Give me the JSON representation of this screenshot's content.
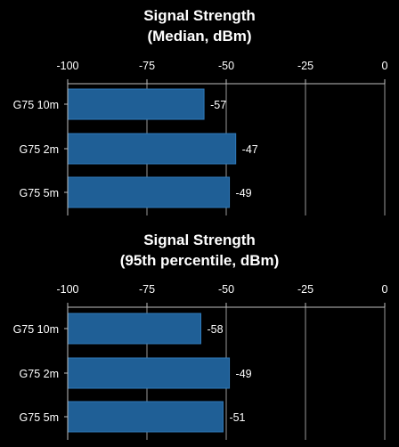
{
  "chart_data": [
    {
      "type": "bar",
      "orientation": "horizontal",
      "title_lines": [
        "Signal Strength",
        "(Median, dBm)"
      ],
      "categories": [
        "G75 10m",
        "G75 2m",
        "G75 5m"
      ],
      "values": [
        -57,
        -47,
        -49
      ],
      "xlim": [
        -100,
        0
      ],
      "xticks": [
        -100,
        -75,
        -50,
        -25,
        0
      ],
      "x_axis_position": "top",
      "grid": true,
      "bar_color": "#1f5f96"
    },
    {
      "type": "bar",
      "orientation": "horizontal",
      "title_lines": [
        "Signal Strength",
        "(95th percentile, dBm)"
      ],
      "categories": [
        "G75 10m",
        "G75 2m",
        "G75 5m"
      ],
      "values": [
        -58,
        -49,
        -51
      ],
      "xlim": [
        -100,
        0
      ],
      "xticks": [
        -100,
        -75,
        -50,
        -25,
        0
      ],
      "x_axis_position": "top",
      "grid": true,
      "bar_color": "#1f5f96"
    }
  ]
}
